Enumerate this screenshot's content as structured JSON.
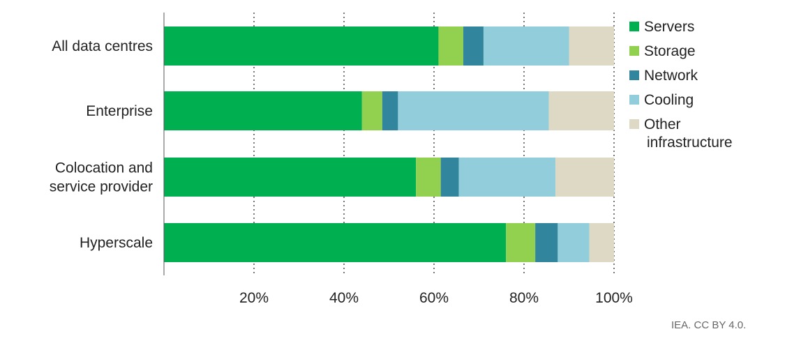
{
  "chart_data": {
    "type": "bar",
    "orientation": "horizontal",
    "stacked": true,
    "title": "",
    "xlabel": "",
    "ylabel": "",
    "xlim": [
      0,
      100
    ],
    "x_ticks": [
      20,
      40,
      60,
      80,
      100
    ],
    "x_tick_labels": [
      "20%",
      "40%",
      "60%",
      "80%",
      "100%"
    ],
    "grid": "vertical dotted",
    "legend_position": "right",
    "categories": [
      "All data centres",
      "Enterprise",
      "Colocation and service provider",
      "Hyperscale"
    ],
    "category_label_lines": [
      [
        "All data centres"
      ],
      [
        "Enterprise"
      ],
      [
        "Colocation and",
        "service provider"
      ],
      [
        "Hyperscale"
      ]
    ],
    "series": [
      {
        "name": "Servers",
        "color": "#00b050",
        "values": [
          61,
          44,
          56,
          76
        ]
      },
      {
        "name": "Storage",
        "color": "#92d050",
        "values": [
          5.5,
          4.5,
          5.5,
          6.5
        ]
      },
      {
        "name": "Network",
        "color": "#31859c",
        "values": [
          4.5,
          3.5,
          4,
          5
        ]
      },
      {
        "name": "Cooling",
        "color": "#92cddc",
        "values": [
          19,
          33.5,
          21.5,
          7
        ]
      },
      {
        "name": "Other infrastructure",
        "color": "#ddd9c4",
        "values": [
          10,
          14.5,
          13,
          5.5
        ]
      }
    ],
    "legend_label_lines": [
      [
        "Servers"
      ],
      [
        "Storage"
      ],
      [
        "Network"
      ],
      [
        "Cooling"
      ],
      [
        "Other",
        "infrastructure"
      ]
    ]
  },
  "credit": "IEA. CC BY 4.0."
}
